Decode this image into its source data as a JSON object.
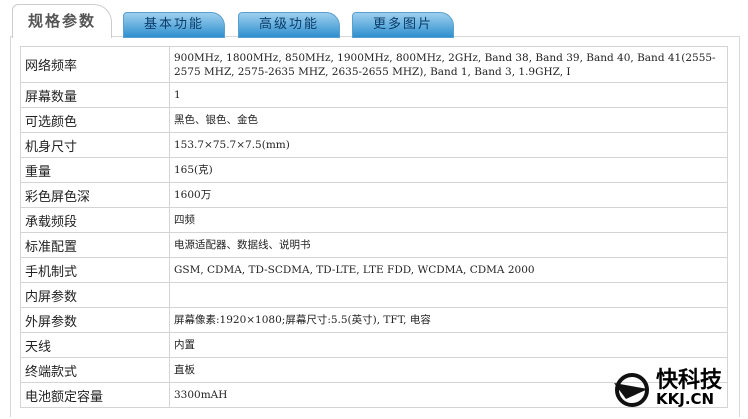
{
  "tabs": [
    {
      "label": "规格参数",
      "active": true
    },
    {
      "label": "基本功能"
    },
    {
      "label": "高级功能"
    },
    {
      "label": "更多图片"
    }
  ],
  "specs": [
    {
      "label": "网络频率",
      "value": "900MHz, 1800MHz, 850MHz, 1900MHz, 800MHz, 2GHz, Band 38, Band 39, Band 40, Band 41(2555-2575 MHZ, 2575-2635 MHZ, 2635-2655 MHZ), Band 1, Band 3, 1.9GHZ, I"
    },
    {
      "label": "屏幕数量",
      "value": "1"
    },
    {
      "label": "可选颜色",
      "value": "黑色、银色、金色"
    },
    {
      "label": "机身尺寸",
      "value": "153.7×75.7×7.5(mm)"
    },
    {
      "label": "重量",
      "value": "165(克)"
    },
    {
      "label": "彩色屏色深",
      "value": "1600万"
    },
    {
      "label": "承载频段",
      "value": "四频"
    },
    {
      "label": "标准配置",
      "value": "电源适配器、数据线、说明书"
    },
    {
      "label": "手机制式",
      "value": "GSM, CDMA, TD-SCDMA, TD-LTE, LTE FDD, WCDMA, CDMA 2000"
    },
    {
      "label": "内屏参数",
      "value": ""
    },
    {
      "label": "外屏参数",
      "value": "屏幕像素:1920×1080;屏幕尺寸:5.5(英寸), TFT, 电容"
    },
    {
      "label": "天线",
      "value": "内置"
    },
    {
      "label": "终端款式",
      "value": "直板"
    },
    {
      "label": "电池额定容量",
      "value": "3300mAH"
    }
  ],
  "watermark": {
    "cn": "快科技",
    "en": "KKJ.CN"
  }
}
